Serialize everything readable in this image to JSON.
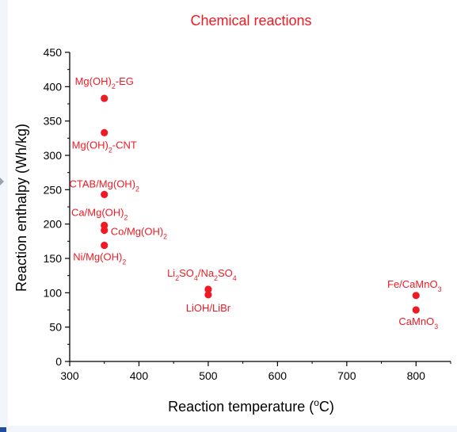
{
  "colors": {
    "accent": "#ee1b24",
    "axis": "#000000",
    "background": "#ffffff"
  },
  "chart_data": {
    "type": "scatter",
    "title": "Chemical reactions",
    "xlabel": "Reaction temperature (°C)",
    "ylabel": "Reaction enthalpy (Wh/kg)",
    "xlim": [
      300,
      850
    ],
    "ylim": [
      0,
      450
    ],
    "xticks": [
      300,
      400,
      500,
      600,
      700,
      800
    ],
    "yticks": [
      0,
      50,
      100,
      150,
      200,
      250,
      300,
      350,
      400,
      450
    ],
    "grid": false,
    "legend": "none",
    "points": [
      {
        "label": "Mg(OH)2-EG",
        "x": 350,
        "y": 383
      },
      {
        "label": "Mg(OH)2-CNT",
        "x": 350,
        "y": 333
      },
      {
        "label": "CTAB/Mg(OH)2",
        "x": 350,
        "y": 243
      },
      {
        "label": "Ca/Mg(OH)2",
        "x": 350,
        "y": 198
      },
      {
        "label": "Co/Mg(OH)2",
        "x": 350,
        "y": 191
      },
      {
        "label": "Ni/Mg(OH)2",
        "x": 350,
        "y": 169
      },
      {
        "label": "Li2SO4/Na2SO4",
        "x": 500,
        "y": 105
      },
      {
        "label": "LiOH/LiBr",
        "x": 500,
        "y": 97
      },
      {
        "label": "Fe/CaMnO3",
        "x": 800,
        "y": 96
      },
      {
        "label": "CaMnO3",
        "x": 800,
        "y": 75
      }
    ]
  }
}
